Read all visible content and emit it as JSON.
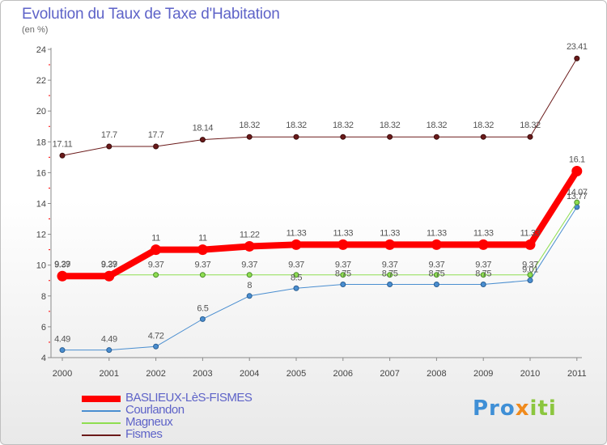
{
  "header": {
    "title": "Evolution du Taux de Taxe d'Habitation",
    "subtitle": "(en %)"
  },
  "logo": {
    "text": "Proxiti"
  },
  "colors": {
    "baslieux": "#ff0000",
    "courlandon": "#4a8ed0",
    "magneux": "#8ede50",
    "fismes": "#6b1a1a",
    "title": "#5e63c8"
  },
  "chart_data": {
    "type": "line",
    "title": "Evolution du Taux de Taxe d'Habitation",
    "subtitle": "(en %)",
    "xlabel": "",
    "ylabel": "",
    "categories": [
      "2000",
      "2001",
      "2002",
      "2003",
      "2004",
      "2005",
      "2006",
      "2007",
      "2008",
      "2009",
      "2010",
      "2011"
    ],
    "ylim": [
      4,
      24
    ],
    "yticks": [
      4,
      6,
      8,
      10,
      12,
      14,
      16,
      18,
      20,
      22,
      24
    ],
    "grid": false,
    "legend_position": "bottom-left",
    "series": [
      {
        "name": "BASLIEUX-LèS-FISMES",
        "color": "#ff0000",
        "values": [
          9.29,
          9.29,
          11,
          11,
          11.22,
          11.33,
          11.33,
          11.33,
          11.33,
          11.33,
          11.33,
          16.1
        ],
        "labels": [
          "9.29",
          "9.29",
          "11",
          "11",
          "11.22",
          "11.33",
          "11.33",
          "11.33",
          "11.33",
          "11.33",
          "11.33",
          "16.1"
        ]
      },
      {
        "name": "Courlandon",
        "color": "#4a8ed0",
        "values": [
          4.49,
          4.49,
          4.72,
          6.5,
          8,
          8.5,
          8.75,
          8.75,
          8.75,
          8.75,
          9.01,
          13.77
        ],
        "labels": [
          "4.49",
          "4.49",
          "4.72",
          "6.5",
          "8",
          "8.5",
          "8.75",
          "8.75",
          "8.75",
          "8.75",
          "9.01",
          "13.77"
        ]
      },
      {
        "name": "Magneux",
        "color": "#8ede50",
        "values": [
          9.37,
          9.37,
          9.37,
          9.37,
          9.37,
          9.37,
          9.37,
          9.37,
          9.37,
          9.37,
          9.37,
          14.07
        ],
        "labels": [
          "9.37",
          "9.37",
          "9.37",
          "9.37",
          "9.37",
          "9.37",
          "9.37",
          "9.37",
          "9.37",
          "9.37",
          "9.37",
          "14.07"
        ]
      },
      {
        "name": "Fismes",
        "color": "#6b1a1a",
        "values": [
          17.11,
          17.7,
          17.7,
          18.14,
          18.32,
          18.32,
          18.32,
          18.32,
          18.32,
          18.32,
          18.32,
          23.41
        ],
        "labels": [
          "17.11",
          "17.7",
          "17.7",
          "18.14",
          "18.32",
          "18.32",
          "18.32",
          "18.32",
          "18.32",
          "18.32",
          "18.32",
          "23.41"
        ]
      }
    ]
  }
}
